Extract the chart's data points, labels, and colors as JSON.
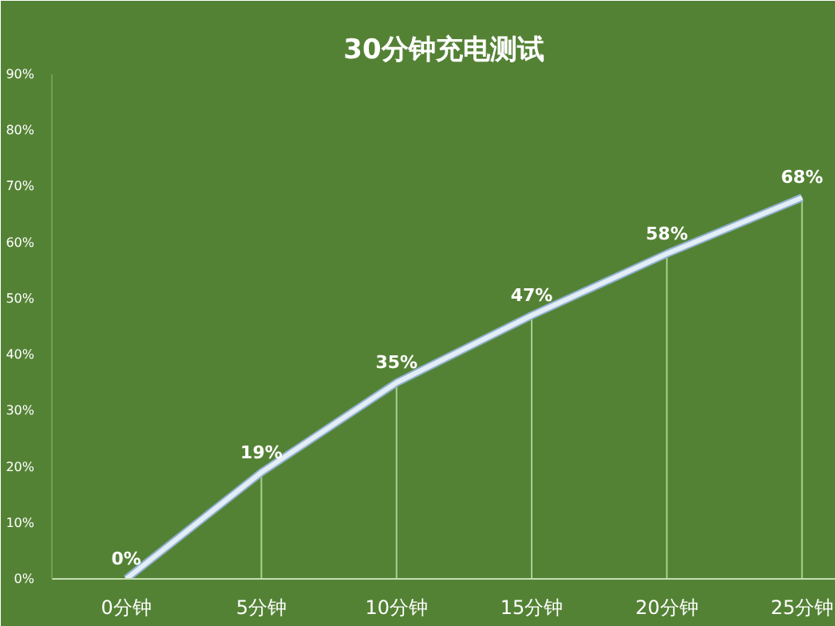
{
  "chart_data": {
    "type": "line",
    "title": "30分钟充电测试",
    "categories": [
      "0分钟",
      "5分钟",
      "10分钟",
      "15分钟",
      "20分钟",
      "25分钟"
    ],
    "series": [
      {
        "color": "#e4eef6",
        "values": [
          0,
          19,
          35,
          47,
          58,
          68
        ]
      }
    ],
    "value_labels": [
      "0%",
      "19%",
      "35%",
      "47%",
      "58%",
      "68%"
    ],
    "ylim": [
      0,
      90
    ],
    "yticks": [
      {
        "value": 0,
        "label": "0%"
      },
      {
        "value": 10,
        "label": "10%"
      },
      {
        "value": 20,
        "label": "20%"
      },
      {
        "value": 30,
        "label": "30%"
      },
      {
        "value": 40,
        "label": "40%"
      },
      {
        "value": 50,
        "label": "50%"
      },
      {
        "value": 60,
        "label": "60%"
      },
      {
        "value": 70,
        "label": "70%"
      },
      {
        "value": 80,
        "label": "80%"
      },
      {
        "value": 90,
        "label": "90%"
      }
    ],
    "grid": false,
    "marker": "none",
    "line_style": "solid"
  }
}
